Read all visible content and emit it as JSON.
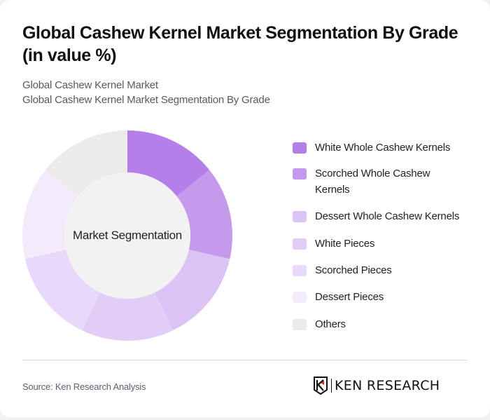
{
  "header": {
    "title": "Global Cashew Kernel Market Segmentation By Grade (in value %)",
    "subtitle_1": "Global Cashew Kernel Market",
    "subtitle_2": "Global Cashew Kernel Market Segmentation By Grade"
  },
  "chart": {
    "center_label": "Market Segmentation"
  },
  "legend": {
    "items": [
      {
        "label": "White Whole Cashew Kernels",
        "color": "#b57fea"
      },
      {
        "label": "Scorched Whole Cashew Kernels",
        "color": "#c59aec"
      },
      {
        "label": "Dessert Whole Cashew Kernels",
        "color": "#dcc3f5"
      },
      {
        "label": "White Pieces",
        "color": "#e2cdf7"
      },
      {
        "label": "Scorched Pieces",
        "color": "#e8d8f9"
      },
      {
        "label": "Dessert Pieces",
        "color": "#f3ebfc"
      },
      {
        "label": "Others",
        "color": "#ebebeb"
      }
    ]
  },
  "footer": {
    "source": "Source: Ken Research Analysis",
    "logo_text": "KEN RESEARCH",
    "logo_icon": "ken-research-k-shield-icon"
  },
  "chart_data": {
    "type": "pie",
    "title": "Global Cashew Kernel Market Segmentation By Grade (in value %)",
    "subtitle": "Global Cashew Kernel Market",
    "center_label": "Market Segmentation",
    "donut": true,
    "categories": [
      "White Whole Cashew Kernels",
      "Scorched Whole Cashew Kernels",
      "Dessert Whole Cashew Kernels",
      "White Pieces",
      "Scorched Pieces",
      "Dessert Pieces",
      "Others"
    ],
    "values": [
      14.29,
      14.29,
      14.29,
      14.29,
      14.29,
      14.29,
      14.29
    ],
    "colors": [
      "#b57fea",
      "#c59aec",
      "#dcc3f5",
      "#e2cdf7",
      "#e8d8f9",
      "#f3ebfc",
      "#ebebeb"
    ],
    "legend_position": "right",
    "source": "Source: Ken Research Analysis"
  }
}
